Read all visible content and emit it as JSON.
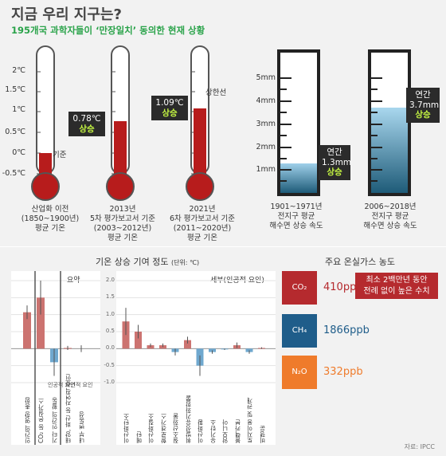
{
  "header": {
    "title": "지금 우리 지구는?",
    "subtitle": "195개국 과학자들이 ‘만장일치’ 동의한 현재 상황"
  },
  "thermometers": {
    "scale": [
      "2℃",
      "1.5℃",
      "1℃",
      "0.5℃",
      "0℃",
      "-0.5℃"
    ],
    "baseline_label": "기준",
    "upper_label": "상한선",
    "items": [
      {
        "caption1": "산업화 이전",
        "caption2": "(1850~1900년)",
        "caption3": "평균 기온",
        "value": "",
        "status": "",
        "level": 0.0
      },
      {
        "caption1": "2013년",
        "caption2": "5차 평가보고서 기준",
        "caption3": "(2003~2012년)",
        "caption4": "평균 기온",
        "value": "0.78℃",
        "status": "상승",
        "level": 0.78
      },
      {
        "caption1": "2021년",
        "caption2": "6차 평가보고서 기준",
        "caption3": "(2011~2020년)",
        "caption4": "평균 기온",
        "value": "1.09℃",
        "status": "상승",
        "level": 1.09
      }
    ]
  },
  "sea_level": {
    "scale": [
      "5mm",
      "4mm",
      "3mm",
      "2mm",
      "1mm"
    ],
    "items": [
      {
        "caption1": "1901~1971년",
        "caption2": "전지구 평균",
        "caption3": "해수면 상승 속도",
        "label1": "연간",
        "label2": "1.3mm",
        "status": "상승",
        "value_mm": 1.3
      },
      {
        "caption1": "2006~2018년",
        "caption2": "전지구 평균",
        "caption3": "해수면 상승 속도",
        "label1": "연간",
        "label2": "3.7mm",
        "status": "상승",
        "value_mm": 3.7
      }
    ]
  },
  "contribution": {
    "title": "기온 상승 기여 정도",
    "unit": "(단위: ℃)",
    "summary_title": "요약",
    "detail_title": "세부(인공적 요인)",
    "human_factor_label": "인공적 요인",
    "natural_factor_label": "자연적 요인"
  },
  "chart_data": {
    "type": "bar",
    "yticks": [
      "2.0",
      "1.5",
      "1.0",
      "0.5",
      "0.0",
      "-0.5",
      "-1.0"
    ],
    "ylim": [
      -1.0,
      2.0
    ],
    "summary": {
      "categories": [
        "인간의 영향 총합",
        "CO₂ 등 온실가스",
        "기타 인간의 활동",
        "태양, 화산 등 자연적 요인",
        "내부 변동성"
      ],
      "values": [
        1.07,
        1.5,
        -0.4,
        0.02,
        0.0
      ],
      "errors": [
        0.2,
        0.5,
        0.4,
        0.06,
        0.1
      ]
    },
    "detail": {
      "categories": [
        "이산화탄소",
        "메탄",
        "이산화질소",
        "할로겐가스",
        "질소산화물",
        "휘발성유기화합물",
        "이산화황",
        "유기탄소",
        "암모니아",
        "블랙카본",
        "토지이용 및 관개",
        "비행운"
      ],
      "values": [
        0.8,
        0.5,
        0.1,
        0.1,
        -0.1,
        0.25,
        -0.5,
        -0.1,
        -0.02,
        0.1,
        -0.1,
        0.02
      ],
      "errors": [
        0.4,
        0.2,
        0.05,
        0.05,
        0.1,
        0.1,
        0.3,
        0.05,
        0.02,
        0.08,
        0.05,
        0.02
      ]
    }
  },
  "gases": {
    "title": "주요 온실가스 농도",
    "items": [
      {
        "name": "CO₂",
        "value": "410ppm",
        "color": "#b52a2e"
      },
      {
        "name": "CH₄",
        "value": "1866ppb",
        "color": "#1f5d8a"
      },
      {
        "name": "N₂O",
        "value": "332ppb",
        "color": "#ef7b2b"
      }
    ],
    "note1": "최소 2백만년 동안",
    "note2": "전례 없이 높은 수치"
  },
  "source": "자료: IPCC"
}
